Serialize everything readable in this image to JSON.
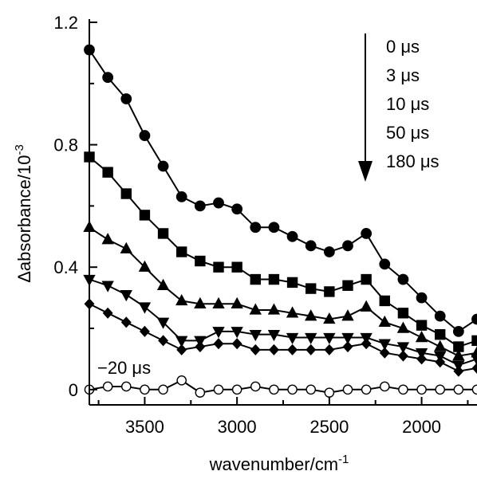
{
  "chart_data": {
    "type": "line",
    "title": "",
    "xlabel": "wavenumber/cm",
    "xlabel_sup": "-1",
    "ylabel_prefix": "Δabsorbance/10",
    "ylabel_sup": "-3",
    "xlim": [
      3800,
      1700
    ],
    "x_reversed": true,
    "ylim": [
      -0.05,
      1.2
    ],
    "xticks": [
      3500,
      3000,
      2500,
      2000
    ],
    "yticks": [
      0,
      0.4,
      0.8,
      1.2
    ],
    "ytick_labels": [
      "0",
      "0.4",
      "0.8",
      "1.2"
    ],
    "xtick_labels": [
      "3500",
      "3000",
      "2500",
      "2000"
    ],
    "grid": false,
    "x": [
      3800,
      3700,
      3600,
      3500,
      3400,
      3300,
      3200,
      3100,
      3000,
      2900,
      2800,
      2700,
      2600,
      2500,
      2400,
      2300,
      2200,
      2100,
      2000,
      1900,
      1800,
      1700
    ],
    "series": [
      {
        "name": "0 μs",
        "marker": "circle",
        "filled": true,
        "values": [
          1.11,
          1.02,
          0.95,
          0.83,
          0.73,
          0.63,
          0.6,
          0.61,
          0.59,
          0.53,
          0.53,
          0.5,
          0.47,
          0.45,
          0.47,
          0.51,
          0.41,
          0.36,
          0.3,
          0.24,
          0.19,
          0.23
        ]
      },
      {
        "name": "3 μs",
        "marker": "square",
        "filled": true,
        "values": [
          0.76,
          0.71,
          0.64,
          0.57,
          0.51,
          0.45,
          0.42,
          0.4,
          0.4,
          0.36,
          0.36,
          0.35,
          0.33,
          0.32,
          0.34,
          0.36,
          0.29,
          0.25,
          0.21,
          0.18,
          0.14,
          0.16
        ]
      },
      {
        "name": "10 μs",
        "marker": "triangle-up",
        "filled": true,
        "values": [
          0.53,
          0.49,
          0.46,
          0.4,
          0.34,
          0.29,
          0.28,
          0.28,
          0.28,
          0.26,
          0.26,
          0.25,
          0.24,
          0.23,
          0.24,
          0.27,
          0.22,
          0.2,
          0.17,
          0.14,
          0.11,
          0.12
        ]
      },
      {
        "name": "50 μs",
        "marker": "triangle-down",
        "filled": true,
        "values": [
          0.36,
          0.34,
          0.31,
          0.27,
          0.22,
          0.16,
          0.16,
          0.19,
          0.19,
          0.18,
          0.18,
          0.17,
          0.17,
          0.17,
          0.17,
          0.17,
          0.15,
          0.14,
          0.12,
          0.11,
          0.08,
          0.1
        ]
      },
      {
        "name": "180 μs",
        "marker": "diamond",
        "filled": true,
        "values": [
          0.28,
          0.25,
          0.22,
          0.19,
          0.16,
          0.13,
          0.14,
          0.15,
          0.15,
          0.13,
          0.13,
          0.13,
          0.13,
          0.13,
          0.14,
          0.15,
          0.12,
          0.11,
          0.1,
          0.09,
          0.06,
          0.07
        ]
      },
      {
        "name": "−20 μs",
        "marker": "circle",
        "filled": false,
        "values": [
          0.0,
          0.01,
          0.01,
          0.0,
          0.0,
          0.03,
          -0.01,
          0.0,
          0.0,
          0.01,
          0.0,
          0.0,
          0.0,
          -0.01,
          0.0,
          0.0,
          0.01,
          0.0,
          0.0,
          0.0,
          0.0,
          0.0
        ]
      }
    ],
    "legend": {
      "entries": [
        "0 μs",
        "3 μs",
        "10 μs",
        "50 μs",
        "180 μs"
      ],
      "placement": "top-right",
      "arrow": "down"
    },
    "annotation": "−20 μs"
  }
}
